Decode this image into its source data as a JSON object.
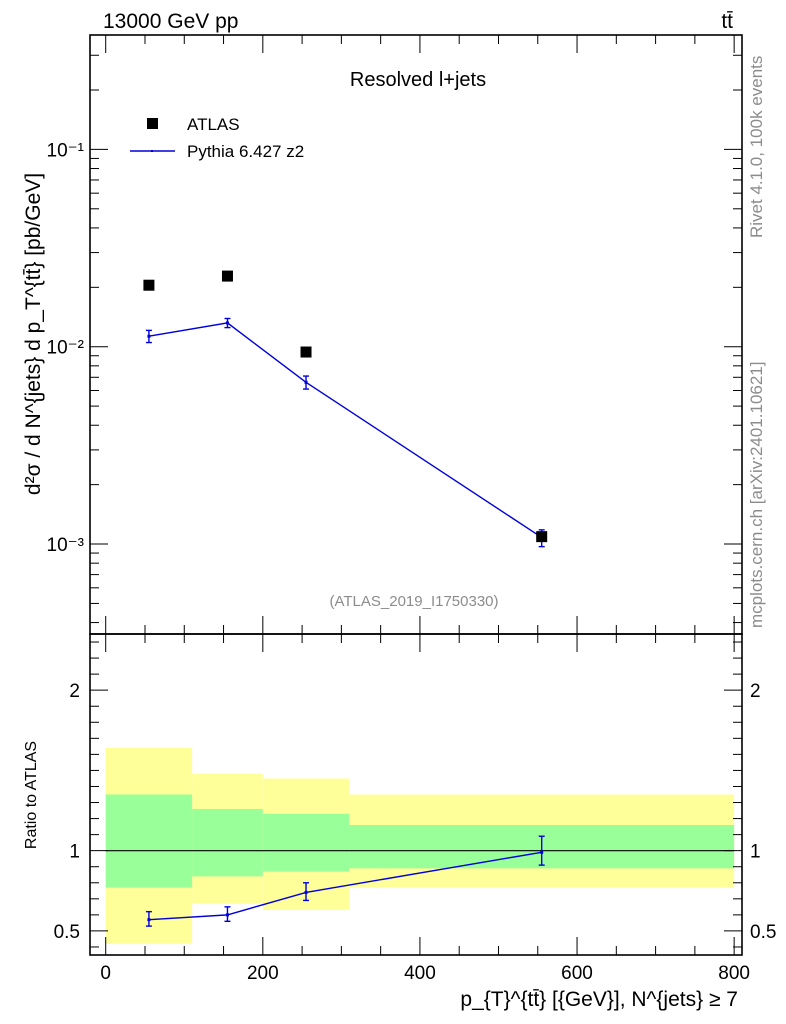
{
  "header": {
    "left": "13000 GeV pp",
    "right": "tt̄"
  },
  "side": {
    "top": "Rivet 4.1.0,  100k events",
    "bottom": "mcplots.cern.ch [arXiv:2401.10621]"
  },
  "chart_data": [
    {
      "type": "scatter",
      "panel": "main",
      "title": "Resolved l+jets",
      "watermark": "(ATLAS_2019_I1750330)",
      "ylabel": "d²σ / d N^{jets} d p_T^{tt̄} [pb/GeV]",
      "yscale": "log",
      "ylim": [
        0.00035,
        0.38
      ],
      "xlim": [
        -20,
        810
      ],
      "ytick_labels": [
        "10⁻³",
        "10⁻²",
        "10⁻¹"
      ],
      "ytick_values": [
        0.001,
        0.01,
        0.1
      ],
      "legend": [
        "ATLAS",
        "Pythia 6.427 z2"
      ],
      "series": [
        {
          "name": "ATLAS",
          "marker": "square",
          "color": "#000000",
          "x": [
            55,
            155,
            255,
            555
          ],
          "y": [
            0.0205,
            0.0228,
            0.0094,
            0.00109
          ]
        },
        {
          "name": "Pythia 6.427 z2",
          "marker": "line",
          "color": "#0000dd",
          "x": [
            55,
            155,
            255,
            555
          ],
          "y": [
            0.0113,
            0.0132,
            0.0066,
            0.00108
          ],
          "yerr_lo": [
            0.0105,
            0.0125,
            0.0061,
            0.00097
          ],
          "yerr_hi": [
            0.0121,
            0.0139,
            0.0071,
            0.00118
          ]
        }
      ]
    },
    {
      "type": "line",
      "panel": "ratio",
      "ylabel": "Ratio to ATLAS",
      "xlabel": "p_{T}^{tt̄} [{GeV}], N^{jets} ≥ 7",
      "xlim": [
        -20,
        810
      ],
      "ylim": [
        0.35,
        2.35
      ],
      "xticks": [
        0,
        200,
        400,
        600,
        800
      ],
      "xtick_labels": [
        "0",
        "200",
        "400",
        "600",
        "800"
      ],
      "yticks": [
        0.5,
        1,
        2
      ],
      "ytick_labels": [
        "0.5",
        "1",
        "2"
      ],
      "bands": [
        {
          "x0": 0,
          "x1": 110,
          "yellow": [
            0.42,
            1.64
          ],
          "green": [
            0.77,
            1.35
          ]
        },
        {
          "x0": 110,
          "x1": 200,
          "yellow": [
            0.67,
            1.48
          ],
          "green": [
            0.84,
            1.26
          ]
        },
        {
          "x0": 200,
          "x1": 310,
          "yellow": [
            0.63,
            1.45
          ],
          "green": [
            0.87,
            1.23
          ]
        },
        {
          "x0": 310,
          "x1": 800,
          "yellow": [
            0.77,
            1.35
          ],
          "green": [
            0.89,
            1.16
          ]
        }
      ],
      "reference": 1,
      "series": [
        {
          "name": "Pythia 6.427 z2 / ATLAS",
          "color": "#0000dd",
          "x": [
            55,
            155,
            255,
            555
          ],
          "y": [
            0.57,
            0.6,
            0.74,
            0.99
          ],
          "yerr_lo": [
            0.53,
            0.56,
            0.69,
            0.91
          ],
          "yerr_hi": [
            0.62,
            0.65,
            0.8,
            1.09
          ]
        }
      ]
    }
  ]
}
